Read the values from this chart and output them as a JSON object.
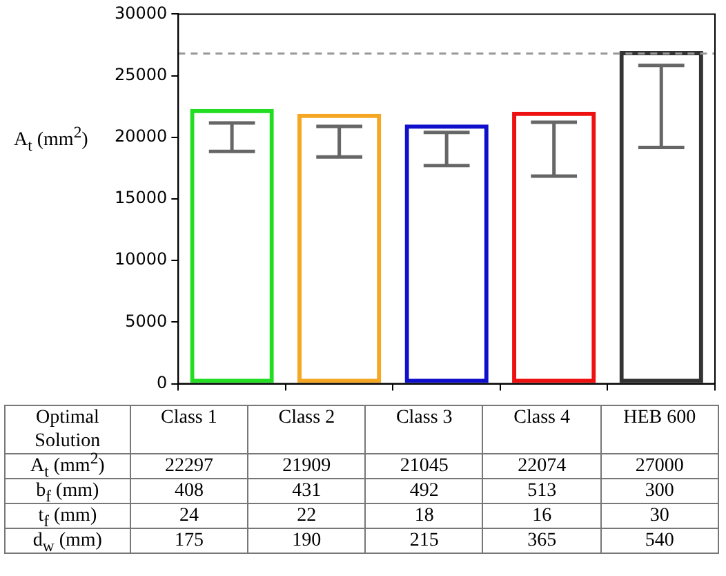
{
  "chart_data": {
    "type": "bar",
    "ylabel": "A$_{t}$ (mm$^{2}$)",
    "categories": [
      "Class 1",
      "Class 2",
      "Class 3",
      "Class 4",
      "HEB 600"
    ],
    "values": [
      22297,
      21909,
      21045,
      22074,
      27000
    ],
    "colors": [
      "#22dd22",
      "#f5a623",
      "#1010cc",
      "#ee1111",
      "#333333"
    ],
    "errors": [
      [
        18850,
        21170
      ],
      [
        18400,
        20890
      ],
      [
        17700,
        20400
      ],
      [
        16850,
        21220
      ],
      [
        19180,
        25830
      ]
    ],
    "ylim": [
      0,
      30000
    ],
    "yticks": [
      0,
      5000,
      10000,
      15000,
      20000,
      25000,
      30000
    ],
    "ref_lines": [
      {
        "axis": "y",
        "value": 26800,
        "color": "#999999",
        "line_style": "dashed"
      }
    ],
    "value_labels": [
      "22297",
      "21909",
      "21045",
      "22074",
      "27000"
    ],
    "grid": false,
    "legend": false,
    "tick_labels": "y",
    "annotations": [
      "Optimal Solution",
      "b$_{f}$ (mm)",
      "408",
      "431",
      "492",
      "513",
      "300",
      "t$_{f}$ (mm)",
      "24",
      "22",
      "18",
      "16",
      "30",
      "d$_{w}$ (mm)",
      "175",
      "190",
      "215",
      "365",
      "540"
    ]
  }
}
